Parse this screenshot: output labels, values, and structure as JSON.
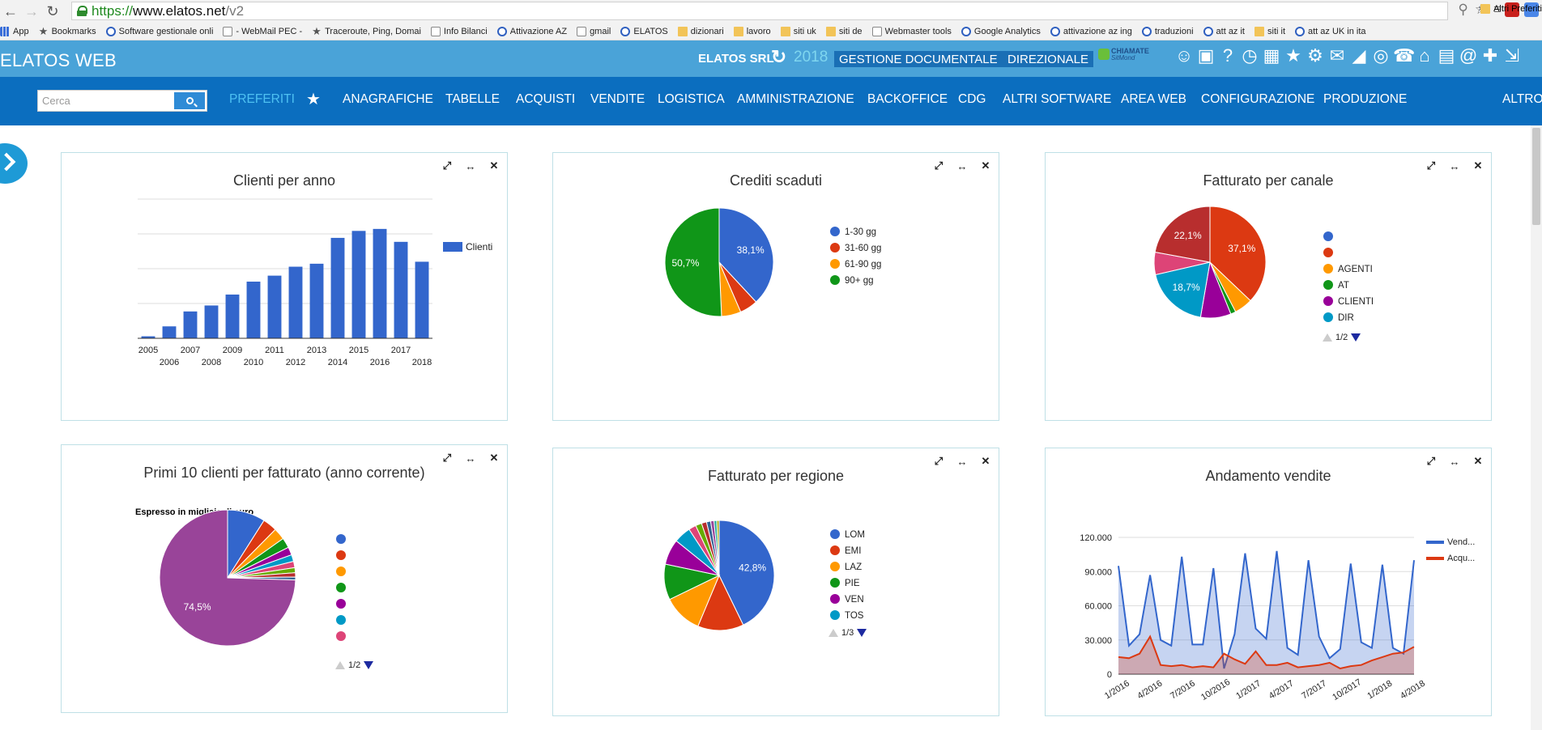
{
  "browser": {
    "url_scheme": "https://",
    "url_host": "www.elatos.net",
    "url_path": "/v2",
    "bookmarks": [
      {
        "label": "App",
        "icon": "apps"
      },
      {
        "label": "Bookmarks",
        "icon": "star"
      },
      {
        "label": "Software gestionale onli",
        "icon": "g"
      },
      {
        "label": "- WebMail PEC -",
        "icon": "page"
      },
      {
        "label": "Traceroute, Ping, Domai",
        "icon": "star"
      },
      {
        "label": "Info Bilanci",
        "icon": "page"
      },
      {
        "label": "Attivazione AZ",
        "icon": "g"
      },
      {
        "label": "gmail",
        "icon": "page"
      },
      {
        "label": "ELATOS",
        "icon": "g"
      },
      {
        "label": "dizionari",
        "icon": "folder"
      },
      {
        "label": "lavoro",
        "icon": "folder"
      },
      {
        "label": "siti uk",
        "icon": "folder"
      },
      {
        "label": "siti de",
        "icon": "folder"
      },
      {
        "label": "Webmaster tools",
        "icon": "page"
      },
      {
        "label": "Google Analytics",
        "icon": "g"
      },
      {
        "label": "attivazione az ing",
        "icon": "g"
      },
      {
        "label": "traduzioni",
        "icon": "g"
      },
      {
        "label": "att az it",
        "icon": "g"
      },
      {
        "label": "siti it",
        "icon": "folder"
      },
      {
        "label": "att az UK in ita",
        "icon": "g"
      }
    ],
    "bookmarks_more": "»",
    "other_bookmarks": "Altri Preferiti"
  },
  "header": {
    "title": "ELATOS WEB",
    "company": "ELATOS SRL",
    "year": "2018",
    "gestione_label": "GESTIONE DOCUMENTALE",
    "direzionale_label": "DIREZIONALE",
    "chiamate_t1": "CHIAMATE",
    "chiamate_t2": "SitMond",
    "icons": [
      "users-icon",
      "lock-icon",
      "help-icon",
      "clock-icon",
      "calendar-icon",
      "star-icon",
      "gears-icon",
      "mail-icon",
      "chart-icon",
      "target-icon",
      "phone-icon",
      "home-icon",
      "folder-open-icon",
      "at-icon",
      "plus-icon",
      "logout-icon"
    ]
  },
  "nav": {
    "search_placeholder": "Cerca",
    "items": [
      {
        "label": "PREFERITI",
        "active": true
      },
      {
        "label": "ANAGRAFICHE"
      },
      {
        "label": "TABELLE"
      },
      {
        "label": "ACQUISTI"
      },
      {
        "label": "VENDITE"
      },
      {
        "label": "LOGISTICA"
      },
      {
        "label": "AMMINISTRAZIONE"
      },
      {
        "label": "BACKOFFICE"
      },
      {
        "label": "CDG"
      },
      {
        "label": "ALTRI SOFTWARE"
      },
      {
        "label": "AREA WEB"
      },
      {
        "label": "CONFIGURAZIONE"
      },
      {
        "label": "PRODUZIONE"
      },
      {
        "label": "ALTRO"
      }
    ]
  },
  "widgets": {
    "clienti": {
      "title": "Clienti per anno"
    },
    "crediti": {
      "title": "Crediti scaduti"
    },
    "canale": {
      "title": "Fatturato per canale",
      "pager": "1/2"
    },
    "primi10": {
      "title": "Primi 10 clienti per fatturato (anno corrente)",
      "subtitle": "Espresso in migliaia di euro",
      "pager": "1/2"
    },
    "regione": {
      "title": "Fatturato per regione",
      "pager": "1/3"
    },
    "vendite": {
      "title": "Andamento vendite"
    }
  },
  "chart_data": [
    {
      "id": "clienti",
      "type": "bar",
      "title": "Clienti per anno",
      "categories": [
        "2005",
        "2006",
        "2007",
        "2008",
        "2009",
        "2010",
        "2011",
        "2012",
        "2013",
        "2014",
        "2015",
        "2016",
        "2017",
        "2018"
      ],
      "series": [
        {
          "name": "Clienti",
          "values": [
            2,
            12,
            27,
            33,
            44,
            57,
            63,
            72,
            75,
            101,
            108,
            110,
            97,
            77
          ],
          "color": "#3366cc"
        }
      ],
      "ylim": [
        0,
        140
      ],
      "grid": true,
      "legend": "right"
    },
    {
      "id": "crediti",
      "type": "pie",
      "title": "Crediti scaduti",
      "slices": [
        {
          "label": "1-30 gg",
          "value": 38.1,
          "color": "#3366cc",
          "data_label": "38,1%"
        },
        {
          "label": "31-60 gg",
          "value": 5.4,
          "color": "#dc3912",
          "data_label": ""
        },
        {
          "label": "61-90 gg",
          "value": 5.8,
          "color": "#ff9900",
          "data_label": ""
        },
        {
          "label": "90+ gg",
          "value": 50.7,
          "color": "#109618",
          "data_label": "50,7%"
        }
      ],
      "legend": "right"
    },
    {
      "id": "canale",
      "type": "pie",
      "title": "Fatturato per canale",
      "slices": [
        {
          "label": "",
          "value": 0.01,
          "color": "#3366cc",
          "data_label": ""
        },
        {
          "label": "",
          "value": 37.1,
          "color": "#dc3912",
          "data_label": "37,1%"
        },
        {
          "label": "AGENTI",
          "value": 5.3,
          "color": "#ff9900",
          "data_label": ""
        },
        {
          "label": "AT",
          "value": 1.5,
          "color": "#109618",
          "data_label": ""
        },
        {
          "label": "CLIENTI",
          "value": 8.8,
          "color": "#990099",
          "data_label": ""
        },
        {
          "label": "DIR",
          "value": 18.7,
          "color": "#0099c6",
          "data_label": "18,7%"
        },
        {
          "label": "",
          "value": 6.5,
          "color": "#dd4477",
          "data_label": ""
        },
        {
          "label": "",
          "value": 22.1,
          "color": "#b82e2e",
          "data_label": "22,1%"
        }
      ],
      "legend": "right"
    },
    {
      "id": "primi10",
      "type": "pie",
      "title": "Primi 10 clienti per fatturato (anno corrente)",
      "slices": [
        {
          "label": "",
          "value": 9.0,
          "color": "#3366cc",
          "data_label": ""
        },
        {
          "label": "",
          "value": 3.4,
          "color": "#dc3912",
          "data_label": ""
        },
        {
          "label": "",
          "value": 2.8,
          "color": "#ff9900",
          "data_label": ""
        },
        {
          "label": "",
          "value": 2.4,
          "color": "#109618",
          "data_label": ""
        },
        {
          "label": "",
          "value": 1.9,
          "color": "#990099",
          "data_label": ""
        },
        {
          "label": "",
          "value": 1.6,
          "color": "#0099c6",
          "data_label": ""
        },
        {
          "label": "",
          "value": 1.5,
          "color": "#dd4477",
          "data_label": ""
        },
        {
          "label": "",
          "value": 1.2,
          "color": "#66aa00",
          "data_label": ""
        },
        {
          "label": "",
          "value": 1.0,
          "color": "#b82e2e",
          "data_label": ""
        },
        {
          "label": "",
          "value": 0.7,
          "color": "#316395",
          "data_label": ""
        },
        {
          "label": "",
          "value": 74.5,
          "color": "#994499",
          "data_label": "74,5%"
        }
      ],
      "legend": "right"
    },
    {
      "id": "regione",
      "type": "pie",
      "title": "Fatturato per regione",
      "slices": [
        {
          "label": "LOM",
          "value": 42.8,
          "color": "#3366cc",
          "data_label": "42,8%"
        },
        {
          "label": "EMI",
          "value": 13.5,
          "color": "#dc3912",
          "data_label": ""
        },
        {
          "label": "LAZ",
          "value": 11.5,
          "color": "#ff9900",
          "data_label": ""
        },
        {
          "label": "PIE",
          "value": 10.5,
          "color": "#109618",
          "data_label": ""
        },
        {
          "label": "VEN",
          "value": 7.5,
          "color": "#990099",
          "data_label": ""
        },
        {
          "label": "TOS",
          "value": 5.0,
          "color": "#0099c6",
          "data_label": ""
        },
        {
          "label": "",
          "value": 2.2,
          "color": "#dd4477",
          "data_label": ""
        },
        {
          "label": "",
          "value": 1.8,
          "color": "#66aa00",
          "data_label": ""
        },
        {
          "label": "",
          "value": 1.5,
          "color": "#b82e2e",
          "data_label": ""
        },
        {
          "label": "",
          "value": 1.2,
          "color": "#316395",
          "data_label": ""
        },
        {
          "label": "",
          "value": 1.0,
          "color": "#994499",
          "data_label": ""
        },
        {
          "label": "",
          "value": 0.8,
          "color": "#22aa99",
          "data_label": ""
        },
        {
          "label": "",
          "value": 0.7,
          "color": "#aaaa11",
          "data_label": ""
        }
      ],
      "legend": "right"
    },
    {
      "id": "vendite",
      "type": "area",
      "title": "Andamento vendite",
      "x_tick_labels": [
        "1/2016",
        "4/2016",
        "7/2016",
        "10/2016",
        "1/2017",
        "4/2017",
        "7/2017",
        "10/2017",
        "1/2018",
        "4/2018"
      ],
      "y_tick_labels": [
        "0",
        "30.000",
        "60.000",
        "90.000",
        "120.000"
      ],
      "ylim": [
        0,
        120000
      ],
      "series": [
        {
          "name": "Vend...",
          "color": "#3366cc",
          "values": [
            95000,
            25000,
            35000,
            87000,
            30000,
            25000,
            103000,
            26000,
            26000,
            93000,
            5000,
            35000,
            106000,
            40000,
            31000,
            108000,
            23000,
            17000,
            100000,
            33000,
            14000,
            22000,
            97000,
            28000,
            23000,
            96000,
            23000,
            18000,
            100000
          ]
        },
        {
          "name": "Acqu...",
          "color": "#dc3912",
          "values": [
            15000,
            14000,
            18000,
            33000,
            8000,
            7000,
            8000,
            6000,
            7000,
            6000,
            18000,
            13000,
            9000,
            20000,
            8000,
            8000,
            10000,
            6000,
            7000,
            8000,
            10000,
            5000,
            7000,
            8000,
            12000,
            15000,
            18000,
            19000,
            24000
          ]
        }
      ],
      "grid": true,
      "legend": "right"
    }
  ]
}
